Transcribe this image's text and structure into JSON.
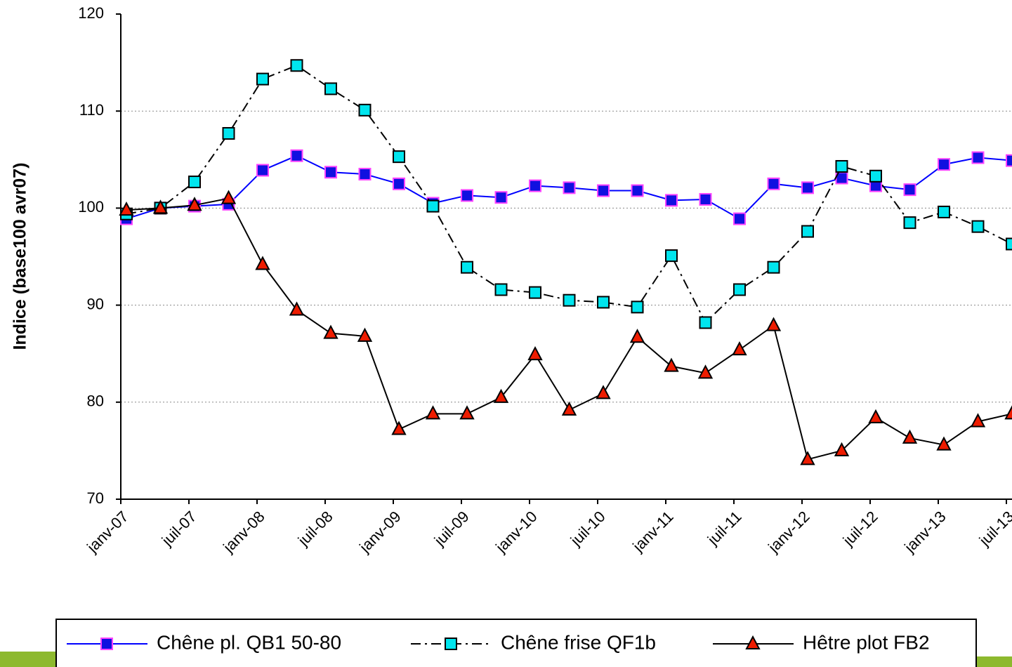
{
  "chart_data": {
    "type": "line",
    "y_label": "Indice (base100 avr07)",
    "categories": [
      "janv-07",
      null,
      "juil-07",
      null,
      "janv-08",
      null,
      "juil-08",
      null,
      "janv-09",
      null,
      "juil-09",
      null,
      "janv-10",
      null,
      "juil-10",
      null,
      "janv-11",
      null,
      "juil-11",
      null,
      "janv-12",
      null,
      "juil-12",
      null,
      "janv-13",
      null,
      "juil-13"
    ],
    "series": [
      {
        "name": "Chêne pl. QB1 50-80",
        "color": "#1010e0",
        "line_color": "#0000ff",
        "marker_edge": "#ff44ff",
        "marker": "square",
        "line_style": "solid",
        "values": [
          98.9,
          100,
          100.2,
          100.4,
          103.9,
          105.4,
          103.7,
          103.5,
          102.5,
          100.5,
          101.3,
          101.1,
          102.3,
          102.1,
          101.8,
          101.8,
          100.8,
          100.9,
          98.9,
          102.5,
          102.1,
          103.1,
          102.3,
          101.9,
          104.5,
          105.2,
          104.9
        ]
      },
      {
        "name": "Chêne frise QF1b",
        "color": "#00e5ee",
        "line_color": "#000000",
        "marker_edge": "#000000",
        "marker": "square",
        "line_style": "dashdot",
        "values": [
          99.4,
          100,
          102.7,
          107.7,
          113.3,
          114.7,
          112.3,
          110.1,
          105.3,
          100.2,
          93.9,
          91.6,
          91.3,
          90.5,
          90.3,
          89.8,
          95.1,
          88.2,
          91.6,
          93.9,
          97.6,
          104.3,
          103.3,
          98.5,
          99.6,
          98.1,
          96.3
        ]
      },
      {
        "name": "Hêtre plot FB2",
        "color": "#ee1c00",
        "line_color": "#000000",
        "marker_edge": "#000000",
        "marker": "triangle",
        "line_style": "solid",
        "values": [
          99.8,
          100,
          100.3,
          101.0,
          94.2,
          89.5,
          87.1,
          86.8,
          77.2,
          78.8,
          78.8,
          80.5,
          84.9,
          79.2,
          80.9,
          86.7,
          83.7,
          83.0,
          85.4,
          87.9,
          74.1,
          75.0,
          78.4,
          76.3,
          75.6,
          78.0,
          78.8
        ]
      }
    ],
    "ylim": [
      70,
      120
    ],
    "yticks": [
      70,
      80,
      90,
      100,
      110,
      120
    ],
    "grid": true,
    "legend": "bottom"
  }
}
